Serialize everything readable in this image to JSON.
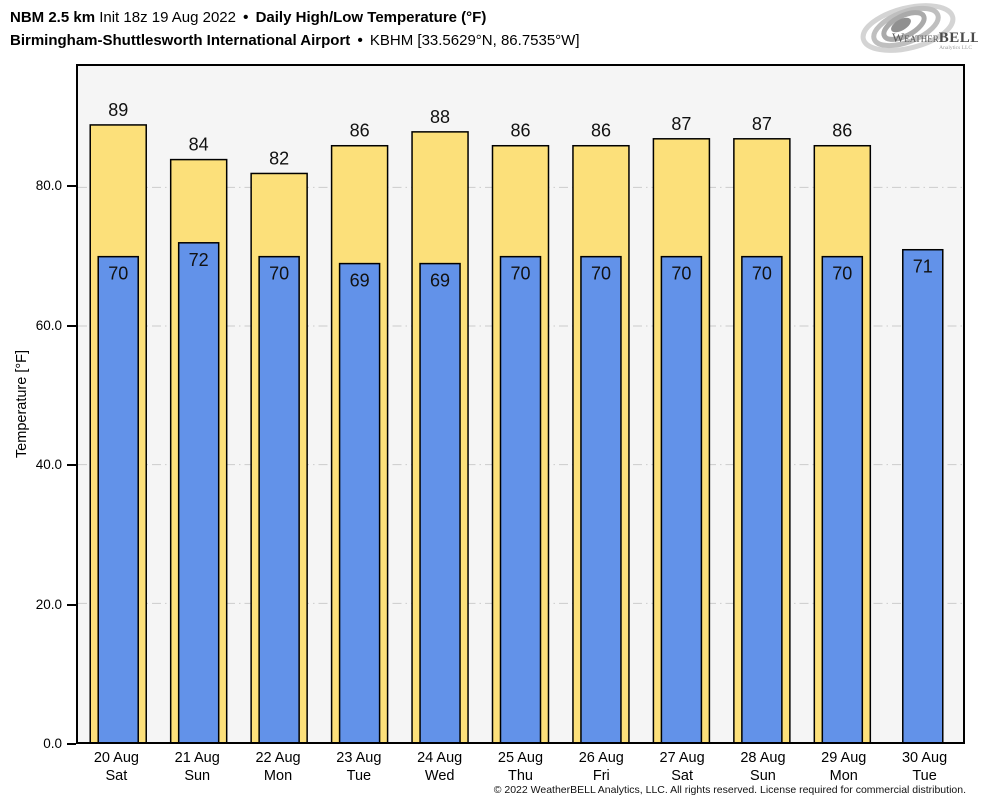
{
  "header": {
    "model": "NBM 2.5 km",
    "init": "Init 18z 19 Aug 2022",
    "bullet": "•",
    "product": "Daily High/Low Temperature (°F)",
    "station": "Birmingham-Shuttlesworth International Airport",
    "station_meta": "KBHM [33.5629°N, 86.7535°W]"
  },
  "logo": {
    "word_weather": "Weather",
    "word_bell": "BELL",
    "word_sub": "Analytics LLC"
  },
  "chart_data": {
    "type": "bar",
    "title": "NBM 2.5 km Daily High/Low Temperature (°F) — Birmingham-Shuttlesworth International Airport (KBHM)",
    "ylabel": "Temperature [°F]",
    "xlabel": "",
    "ylim": [
      0,
      97.5
    ],
    "yticks": [
      0,
      20,
      40,
      60,
      80
    ],
    "ytick_labels": [
      "0.0",
      "20.0",
      "40.0",
      "60.0",
      "80.0"
    ],
    "grid": true,
    "legend_position": "none",
    "plot_bg": "#f5f5f5",
    "gridline_color": "#cccccc",
    "bar_outline": "#000000",
    "categories": [
      {
        "date": "20 Aug",
        "dow": "Sat"
      },
      {
        "date": "21 Aug",
        "dow": "Sun"
      },
      {
        "date": "22 Aug",
        "dow": "Mon"
      },
      {
        "date": "23 Aug",
        "dow": "Tue"
      },
      {
        "date": "24 Aug",
        "dow": "Wed"
      },
      {
        "date": "25 Aug",
        "dow": "Thu"
      },
      {
        "date": "26 Aug",
        "dow": "Fri"
      },
      {
        "date": "27 Aug",
        "dow": "Sat"
      },
      {
        "date": "28 Aug",
        "dow": "Sun"
      },
      {
        "date": "29 Aug",
        "dow": "Mon"
      },
      {
        "date": "30 Aug",
        "dow": "Tue"
      }
    ],
    "series": [
      {
        "name": "Daily High",
        "color": "#FCE07A",
        "values": [
          89,
          84,
          82,
          86,
          88,
          86,
          86,
          87,
          87,
          86,
          null
        ]
      },
      {
        "name": "Daily Low",
        "color": "#6292E9",
        "values": [
          70,
          72,
          70,
          69,
          69,
          70,
          70,
          70,
          70,
          70,
          71
        ]
      }
    ]
  },
  "footer": {
    "copyright": "© 2022 WeatherBELL Analytics, LLC. All rights reserved. License required for commercial distribution."
  }
}
